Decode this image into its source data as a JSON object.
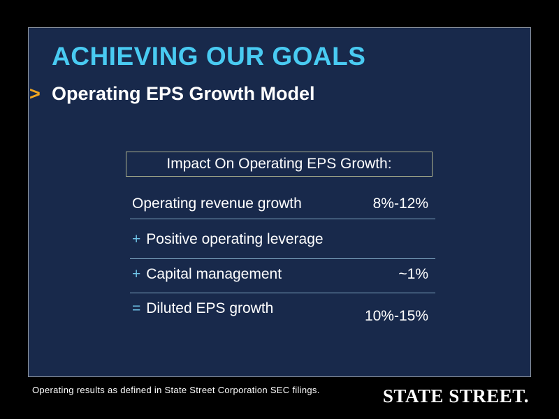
{
  "slide": {
    "title": "ACHIEVING OUR GOALS",
    "bullet": ">",
    "subtitle": "Operating EPS Growth Model",
    "footnote": "Operating results as defined in State Street Corporation SEC filings.",
    "logo": "STATE STREET."
  },
  "table": {
    "header": "Impact On Operating EPS Growth:",
    "rows": [
      {
        "sign": "",
        "label": "Operating revenue growth",
        "value": "8%-12%"
      },
      {
        "sign": "+",
        "label": "Positive operating leverage",
        "value": ""
      },
      {
        "sign": "+",
        "label": "Capital management",
        "value": "~1%"
      },
      {
        "sign": "=",
        "label": "Diluted EPS growth",
        "value": "10%-15%"
      }
    ]
  },
  "colors": {
    "background": "#000000",
    "slide_background": "#18294B",
    "slide_border": "#8C94A0",
    "title": "#49CBF2",
    "bullet": "#F2A71F",
    "body_text": "#FFFFFF",
    "sign": "#6FC4E8",
    "separator": "#7FA6C2",
    "header_box_border": "#A9AE8C"
  }
}
